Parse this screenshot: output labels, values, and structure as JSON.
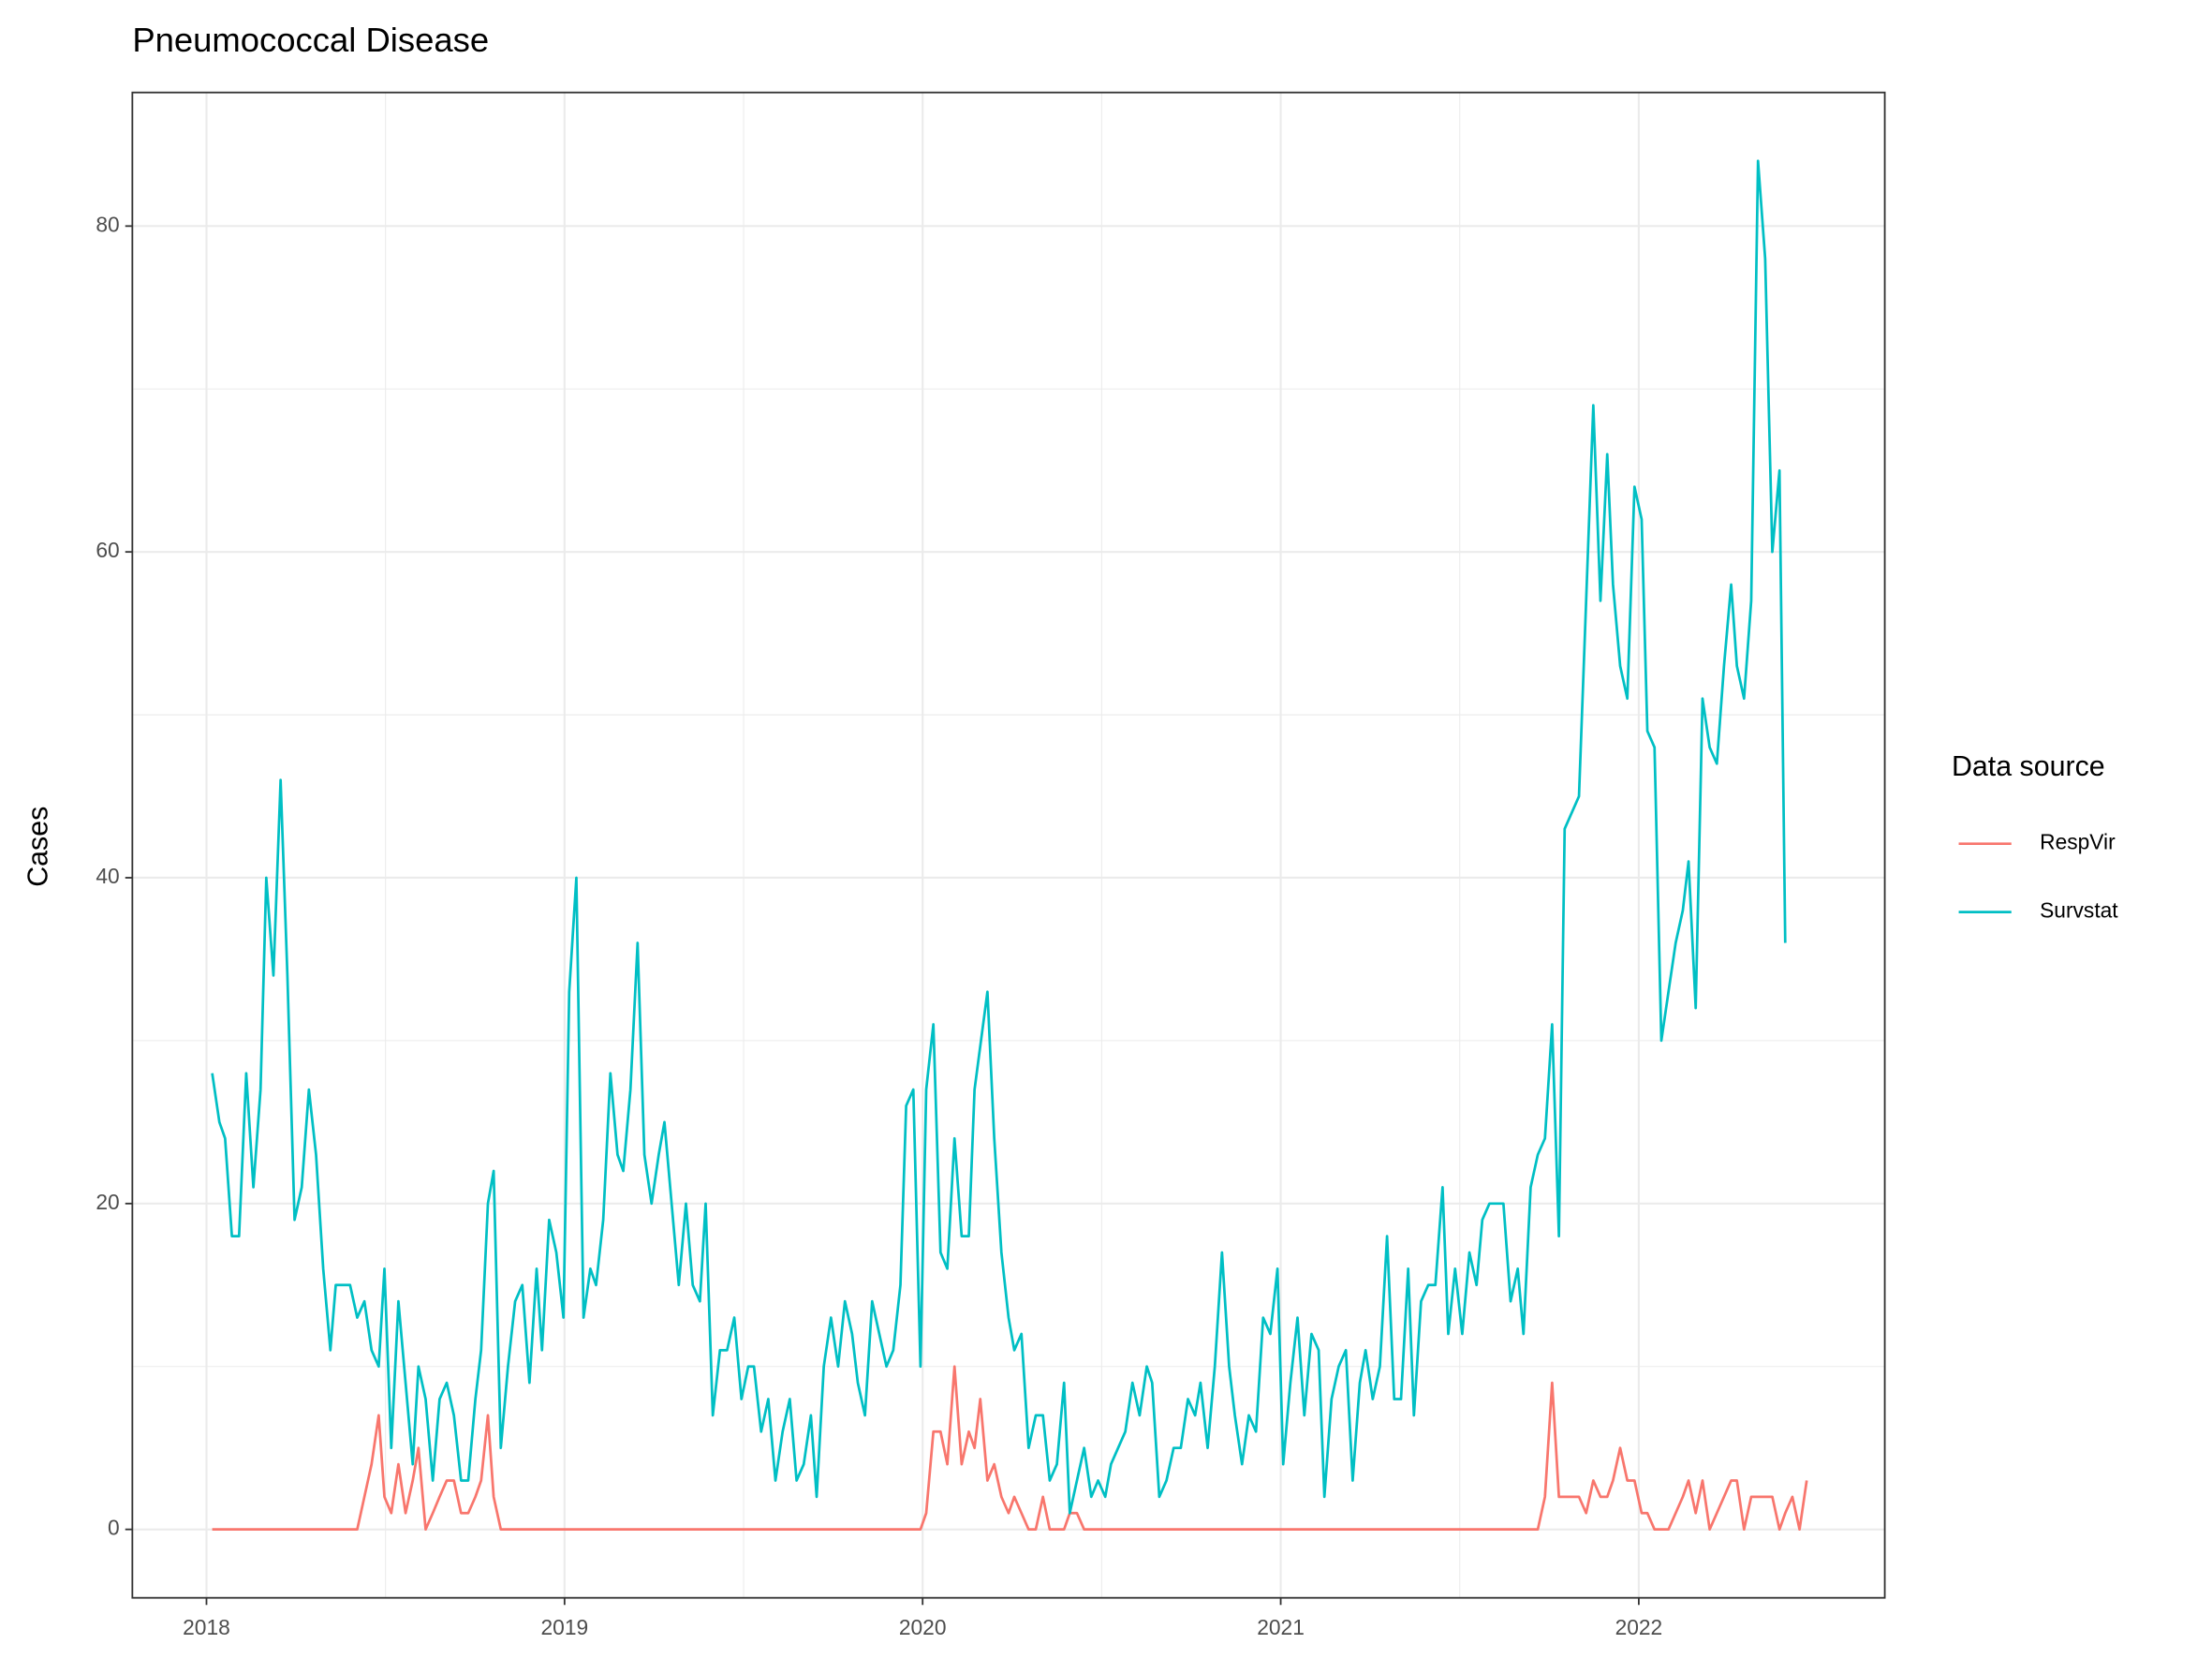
{
  "chart_data": {
    "type": "line",
    "title": "Pneumococcal Disease",
    "y_label": "Cases",
    "legend_title": "Data source",
    "legend_position": "right",
    "grid": true,
    "minor_grid": true,
    "xlim": [
      2017.793,
      2022.687
    ],
    "xticks": [
      2018,
      2019,
      2020,
      2021,
      2022
    ],
    "ylim": [
      -4.2,
      88.2
    ],
    "yticks": [
      0,
      20,
      40,
      60,
      80
    ],
    "series": [
      {
        "name": "RespVir",
        "color": "#F8766D",
        "x": [
          2018.016,
          2018.421,
          2018.441,
          2018.461,
          2018.481,
          2018.497,
          2018.516,
          2018.536,
          2018.556,
          2018.576,
          2018.592,
          2018.612,
          2018.632,
          2018.651,
          2018.671,
          2018.691,
          2018.711,
          2018.731,
          2018.751,
          2018.767,
          2018.786,
          2018.802,
          2018.822,
          2019.994,
          2020.01,
          2020.03,
          2020.05,
          2020.069,
          2020.089,
          2020.109,
          2020.129,
          2020.145,
          2020.161,
          2020.181,
          2020.2,
          2020.22,
          2020.24,
          2020.256,
          2020.276,
          2020.296,
          2020.316,
          2020.336,
          2020.355,
          2020.375,
          2020.395,
          2020.411,
          2020.431,
          2020.451,
          2021.718,
          2021.738,
          2021.758,
          2021.777,
          2021.793,
          2021.813,
          2021.833,
          2021.853,
          2021.873,
          2021.893,
          2021.912,
          2021.928,
          2021.948,
          2021.968,
          2021.988,
          2022.008,
          2022.024,
          2022.044,
          2022.063,
          2022.083,
          2022.103,
          2022.123,
          2022.139,
          2022.159,
          2022.178,
          2022.198,
          2022.218,
          2022.238,
          2022.258,
          2022.274,
          2022.294,
          2022.314,
          2022.333,
          2022.353,
          2022.373,
          2022.393,
          2022.409,
          2022.429,
          2022.449,
          2022.469
        ],
        "values": [
          0,
          0,
          2,
          4,
          7,
          2,
          1,
          4,
          1,
          3,
          5,
          0,
          1,
          2,
          3,
          3,
          1,
          1,
          2,
          3,
          7,
          2,
          0,
          0,
          1,
          6,
          6,
          4,
          10,
          4,
          6,
          5,
          8,
          3,
          4,
          2,
          1,
          2,
          1,
          0,
          0,
          2,
          0,
          0,
          0,
          1,
          1,
          0,
          0,
          2,
          9,
          2,
          2,
          2,
          2,
          1,
          3,
          2,
          2,
          3,
          5,
          3,
          3,
          1,
          1,
          0,
          0,
          0,
          1,
          2,
          3,
          1,
          3,
          0,
          1,
          2,
          3,
          3,
          0,
          2,
          2,
          2,
          2,
          0,
          1,
          2,
          0,
          3
        ]
      },
      {
        "name": "Survstat",
        "color": "#00BFC4",
        "x": [
          2018.016,
          2018.036,
          2018.052,
          2018.071,
          2018.091,
          2018.111,
          2018.131,
          2018.151,
          2018.167,
          2018.187,
          2018.207,
          2018.226,
          2018.246,
          2018.266,
          2018.286,
          2018.306,
          2018.326,
          2018.346,
          2018.361,
          2018.381,
          2018.401,
          2018.421,
          2018.441,
          2018.461,
          2018.481,
          2018.497,
          2018.516,
          2018.536,
          2018.556,
          2018.576,
          2018.592,
          2018.612,
          2018.632,
          2018.651,
          2018.671,
          2018.691,
          2018.711,
          2018.731,
          2018.751,
          2018.767,
          2018.786,
          2018.802,
          2018.822,
          2018.842,
          2018.862,
          2018.882,
          2018.902,
          2018.922,
          2018.937,
          2018.957,
          2018.977,
          2018.997,
          2019.013,
          2019.033,
          2019.053,
          2019.072,
          2019.088,
          2019.108,
          2019.128,
          2019.148,
          2019.164,
          2019.184,
          2019.204,
          2019.223,
          2019.243,
          2019.263,
          2019.279,
          2019.299,
          2019.319,
          2019.339,
          2019.358,
          2019.378,
          2019.394,
          2019.414,
          2019.434,
          2019.454,
          2019.474,
          2019.494,
          2019.513,
          2019.529,
          2019.549,
          2019.569,
          2019.589,
          2019.609,
          2019.629,
          2019.648,
          2019.668,
          2019.688,
          2019.704,
          2019.724,
          2019.744,
          2019.764,
          2019.783,
          2019.803,
          2019.819,
          2019.839,
          2019.859,
          2019.879,
          2019.899,
          2019.918,
          2019.938,
          2019.954,
          2019.974,
          2019.994,
          2020.01,
          2020.03,
          2020.05,
          2020.069,
          2020.089,
          2020.109,
          2020.129,
          2020.145,
          2020.181,
          2020.2,
          2020.22,
          2020.24,
          2020.256,
          2020.276,
          2020.296,
          2020.316,
          2020.336,
          2020.355,
          2020.375,
          2020.395,
          2020.411,
          2020.431,
          2020.451,
          2020.471,
          2020.49,
          2020.51,
          2020.526,
          2020.546,
          2020.566,
          2020.586,
          2020.606,
          2020.626,
          2020.641,
          2020.661,
          2020.681,
          2020.701,
          2020.721,
          2020.741,
          2020.761,
          2020.776,
          2020.796,
          2020.816,
          2020.836,
          2020.856,
          2020.872,
          2020.892,
          2020.911,
          2020.931,
          2020.951,
          2020.971,
          2020.991,
          2021.007,
          2021.027,
          2021.047,
          2021.066,
          2021.086,
          2021.106,
          2021.122,
          2021.142,
          2021.162,
          2021.182,
          2021.201,
          2021.221,
          2021.237,
          2021.257,
          2021.277,
          2021.297,
          2021.317,
          2021.336,
          2021.356,
          2021.372,
          2021.392,
          2021.412,
          2021.432,
          2021.452,
          2021.468,
          2021.487,
          2021.507,
          2021.527,
          2021.547,
          2021.563,
          2021.583,
          2021.603,
          2021.622,
          2021.642,
          2021.662,
          2021.678,
          2021.698,
          2021.718,
          2021.738,
          2021.758,
          2021.777,
          2021.793,
          2021.813,
          2021.833,
          2021.873,
          2021.893,
          2021.912,
          2021.928,
          2021.948,
          2021.968,
          2021.988,
          2022.008,
          2022.024,
          2022.044,
          2022.063,
          2022.083,
          2022.103,
          2022.123,
          2022.139,
          2022.159,
          2022.178,
          2022.198,
          2022.218,
          2022.238,
          2022.258,
          2022.274,
          2022.294,
          2022.314,
          2022.333,
          2022.353,
          2022.373,
          2022.393,
          2022.409
        ],
        "values": [
          28,
          25,
          24,
          18,
          18,
          28,
          21,
          27,
          40,
          34,
          46,
          34,
          19,
          21,
          27,
          23,
          16,
          11,
          15,
          15,
          15,
          13,
          14,
          11,
          10,
          16,
          5,
          14,
          9,
          4,
          10,
          8,
          3,
          8,
          9,
          7,
          3,
          3,
          8,
          11,
          20,
          22,
          5,
          10,
          14,
          15,
          9,
          16,
          11,
          19,
          17,
          13,
          33,
          40,
          13,
          16,
          15,
          19,
          28,
          23,
          22,
          27,
          36,
          23,
          20,
          23,
          25,
          20,
          15,
          20,
          15,
          14,
          20,
          7,
          11,
          11,
          13,
          8,
          10,
          10,
          6,
          8,
          3,
          6,
          8,
          3,
          4,
          7,
          2,
          10,
          13,
          10,
          14,
          12,
          9,
          7,
          14,
          12,
          10,
          11,
          15,
          26,
          27,
          10,
          27,
          31,
          17,
          16,
          24,
          18,
          18,
          27,
          33,
          24,
          17,
          13,
          11,
          12,
          5,
          7,
          7,
          3,
          4,
          9,
          1,
          3,
          5,
          2,
          3,
          2,
          4,
          5,
          6,
          9,
          7,
          10,
          9,
          2,
          3,
          5,
          5,
          8,
          7,
          9,
          5,
          10,
          17,
          10,
          7,
          4,
          7,
          6,
          13,
          12,
          16,
          4,
          9,
          13,
          7,
          12,
          11,
          2,
          8,
          10,
          11,
          3,
          9,
          11,
          8,
          10,
          18,
          8,
          8,
          16,
          7,
          14,
          15,
          15,
          21,
          12,
          16,
          12,
          17,
          15,
          19,
          20,
          20,
          20,
          14,
          16,
          12,
          21,
          23,
          24,
          31,
          18,
          43,
          44,
          45,
          69,
          57,
          66,
          58,
          53,
          51,
          64,
          62,
          49,
          48,
          30,
          33,
          36,
          38,
          41,
          32,
          51,
          48,
          47,
          53,
          58,
          53,
          51,
          57,
          84,
          78,
          60,
          65,
          36
        ]
      }
    ]
  }
}
